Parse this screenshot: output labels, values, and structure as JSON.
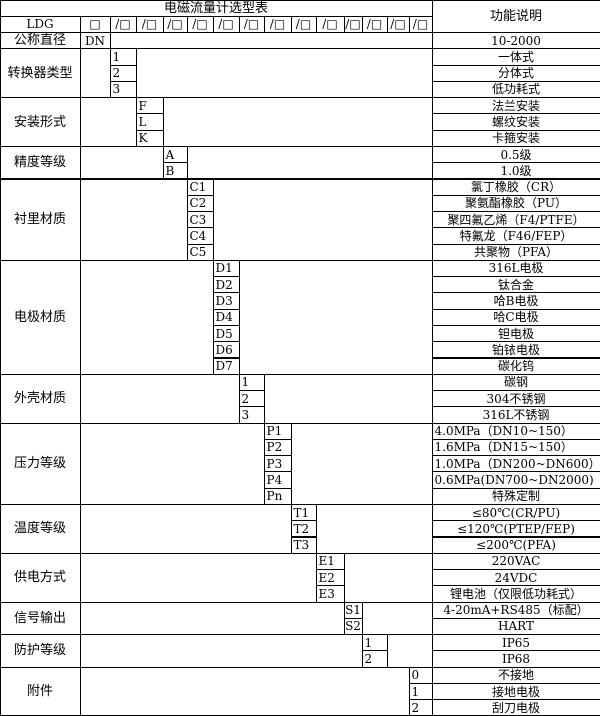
{
  "title": "电磁流量计选型表",
  "function_header": "功能说明",
  "model_row": [
    "LDG",
    "□",
    "/□",
    "/□",
    "/□",
    "/□",
    "/□",
    "/□",
    "/□",
    "/□",
    "/□",
    "/□",
    "/□",
    "/□",
    "/□"
  ],
  "nominal": {
    "label": "公称直径",
    "code": "DN",
    "desc": "10-2000"
  },
  "groups": [
    {
      "label": "转换器类型",
      "codes": [
        "1",
        "2",
        "3"
      ],
      "descs": [
        "一体式",
        "分体式",
        "低功耗式"
      ]
    },
    {
      "label": "安装形式",
      "codes": [
        "F",
        "L",
        "K"
      ],
      "descs": [
        "法兰安装",
        "螺纹安装",
        "卡箍安装"
      ]
    },
    {
      "label": "精度等级",
      "codes": [
        "A",
        "B"
      ],
      "descs": [
        "0.5级",
        "1.0级"
      ]
    },
    {
      "label": "衬里材质",
      "codes": [
        "C1",
        "C2",
        "C3",
        "C4",
        "C5"
      ],
      "descs": [
        "氯丁橡胶（CR）",
        "聚氨酯橡胶（PU）",
        "聚四氟乙烯（F4/PTFE）",
        "特氟龙（F46/FEP）",
        "共聚物（PFA）"
      ]
    },
    {
      "label": "电极材质",
      "codes": [
        "D1",
        "D2",
        "D3",
        "D4",
        "D5",
        "D6",
        "D7"
      ],
      "descs": [
        "316L电极",
        "钛合金",
        "哈B电极",
        "哈C电极",
        "钽电极",
        "铂铱电极",
        "碳化钨"
      ]
    },
    {
      "label": "外壳材质",
      "codes": [
        "1",
        "2",
        "3"
      ],
      "descs": [
        "碳钢",
        "304不锈钢",
        "316L不锈钢"
      ]
    },
    {
      "label": "压力等级",
      "codes": [
        "P1",
        "P2",
        "P3",
        "P4",
        "Pn"
      ],
      "descs": [
        "4.0MPa（DN10~150）",
        "1.6MPa（DN15~150）",
        "1.0MPa（DN200~DN600）",
        "0.6MPa(DN700~DN2000)",
        "特殊定制"
      ],
      "left_aligned": [
        true,
        true,
        true,
        true,
        false
      ]
    },
    {
      "label": "温度等级",
      "codes": [
        "T1",
        "T2",
        "T3"
      ],
      "descs": [
        "≤80℃(CR/PU)",
        "≤120℃(PTEP/FEP)",
        "≤200℃(PFA)"
      ]
    },
    {
      "label": "供电方式",
      "codes": [
        "E1",
        "E2",
        "E3"
      ],
      "descs": [
        "220VAC",
        "24VDC",
        "锂电池（仅限低功耗式）"
      ]
    },
    {
      "label": "信号输出",
      "codes": [
        "S1",
        "S2"
      ],
      "descs": [
        "4-20mA+RS485（标配）",
        "HART"
      ]
    },
    {
      "label": "防护等级",
      "codes": [
        "1",
        "2"
      ],
      "descs": [
        "IP65",
        "IP68"
      ]
    },
    {
      "label": "附件",
      "codes": [
        "0",
        "1",
        "2"
      ],
      "descs": [
        "不接地",
        "接地电极",
        "刮刀电极"
      ]
    }
  ]
}
